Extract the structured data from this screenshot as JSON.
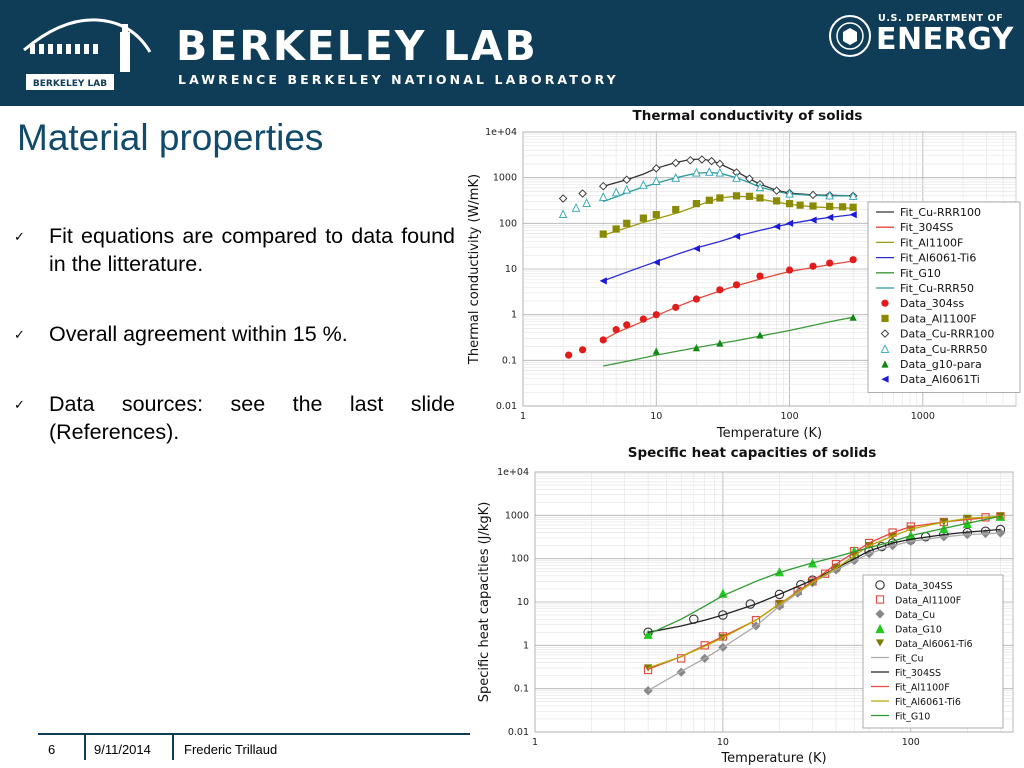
{
  "header": {
    "logo_left_text": "BERKELEY LAB",
    "wordmark": "BERKELEY LAB",
    "subtitle": "LAWRENCE BERKELEY NATIONAL LABORATORY",
    "doe_line1": "U.S. DEPARTMENT OF",
    "doe_line2": "ENERGY",
    "colors": {
      "header_bg": "#0f3d57",
      "title": "#124a6b"
    }
  },
  "slide": {
    "title": "Material properties",
    "bullets": [
      "Fit equations are compared to data found in the litterature.",
      "Overall agreement within 15 %.",
      "Data sources: see the last slide (References)."
    ],
    "check_glyph": "✓"
  },
  "footer": {
    "page": "6",
    "date": "9/11/2014",
    "author": "Frederic Trillaud"
  },
  "chart_data": [
    {
      "type": "line",
      "title": "Thermal conductivity of solids",
      "xlabel": "Temperature (K)",
      "ylabel": "Thermal conductivity (W/mK)",
      "xscale": "log",
      "yscale": "log",
      "xlim": [
        1,
        5000
      ],
      "ylim": [
        0.01,
        10000
      ],
      "xticks": [
        1,
        10,
        100,
        1000
      ],
      "xtick_labels": [
        "1",
        "10",
        "100",
        "1000"
      ],
      "yticks": [
        0.01,
        0.1,
        1,
        10,
        100,
        1000,
        10000
      ],
      "ytick_labels": [
        "0.01",
        "0.1",
        "1",
        "10",
        "100",
        "1000",
        "1e+04"
      ],
      "grid": true,
      "legend_position": "right",
      "series": [
        {
          "name": "Fit_Cu-RRR100",
          "kind": "line",
          "color": "#333333",
          "x": [
            4,
            6,
            8,
            10,
            14,
            18,
            22,
            26,
            30,
            40,
            50,
            60,
            80,
            100,
            150,
            200,
            300
          ],
          "y": [
            650,
            900,
            1200,
            1600,
            2150,
            2500,
            2550,
            2350,
            2000,
            1350,
            950,
            720,
            530,
            460,
            420,
            410,
            400
          ]
        },
        {
          "name": "Fit_304SS",
          "kind": "line",
          "color": "#e8463a",
          "x": [
            4,
            5,
            6,
            8,
            10,
            14,
            20,
            30,
            40,
            60,
            80,
            100,
            150,
            200,
            300
          ],
          "y": [
            0.28,
            0.4,
            0.5,
            0.72,
            0.95,
            1.45,
            2.2,
            3.3,
            4.3,
            6.0,
            7.5,
            8.8,
            10.8,
            12.5,
            15
          ]
        },
        {
          "name": "Fit_Al1100F",
          "kind": "line",
          "color": "#9a9a10",
          "x": [
            4,
            6,
            8,
            10,
            15,
            20,
            30,
            40,
            50,
            60,
            80,
            100,
            150,
            200,
            300
          ],
          "y": [
            55,
            80,
            105,
            125,
            175,
            240,
            360,
            390,
            380,
            340,
            290,
            260,
            230,
            220,
            215
          ]
        },
        {
          "name": "Fit_Al6061-Ti6",
          "kind": "line",
          "color": "#2b2bd6",
          "x": [
            4,
            6,
            8,
            10,
            15,
            20,
            30,
            40,
            60,
            80,
            100,
            150,
            200,
            300
          ],
          "y": [
            5.5,
            8.5,
            11.5,
            14.5,
            22,
            29,
            40,
            52,
            70,
            85,
            98,
            120,
            135,
            155
          ]
        },
        {
          "name": "Fit_G10",
          "kind": "line",
          "color": "#3a9a3a",
          "x": [
            4,
            6,
            10,
            20,
            40,
            60,
            100,
            200,
            300
          ],
          "y": [
            0.075,
            0.095,
            0.13,
            0.19,
            0.27,
            0.34,
            0.45,
            0.7,
            0.88
          ]
        },
        {
          "name": "Fit_Cu-RRR50",
          "kind": "line",
          "color": "#2a9a9a",
          "x": [
            4,
            5,
            6,
            8,
            10,
            14,
            20,
            25,
            30,
            40,
            50,
            60,
            80,
            100,
            150,
            200,
            300
          ],
          "y": [
            300,
            380,
            470,
            620,
            760,
            1000,
            1250,
            1300,
            1250,
            1000,
            780,
            620,
            500,
            440,
            410,
            400,
            400
          ]
        },
        {
          "name": "Data_304ss",
          "kind": "circle",
          "color": "#e21b1b",
          "x": [
            2.2,
            2.8,
            4,
            5,
            6,
            8,
            10,
            14,
            20,
            30,
            40,
            60,
            100,
            150,
            200,
            300
          ],
          "y": [
            0.13,
            0.17,
            0.28,
            0.47,
            0.6,
            0.8,
            1.0,
            1.45,
            2.2,
            3.5,
            4.5,
            7.0,
            9.5,
            11.5,
            13.5,
            16
          ]
        },
        {
          "name": "Data_Al1100F",
          "kind": "square",
          "color": "#8a8a00",
          "x": [
            4,
            5,
            6,
            8,
            10,
            14,
            20,
            25,
            30,
            40,
            50,
            60,
            80,
            100,
            120,
            150,
            200,
            250,
            300
          ],
          "y": [
            58,
            75,
            100,
            130,
            155,
            200,
            270,
            320,
            360,
            400,
            390,
            360,
            310,
            270,
            250,
            240,
            235,
            230,
            225
          ]
        },
        {
          "name": "Data_Cu-RRR100",
          "kind": "diamond",
          "color": "#333333",
          "x": [
            2,
            2.8,
            4,
            6,
            10,
            14,
            18,
            22,
            26,
            30,
            40,
            50,
            60,
            80,
            100,
            150,
            200,
            300
          ],
          "y": [
            350,
            450,
            650,
            900,
            1600,
            2100,
            2400,
            2500,
            2300,
            2000,
            1300,
            950,
            720,
            520,
            460,
            420,
            410,
            400
          ]
        },
        {
          "name": "Data_Cu-RRR50",
          "kind": "triangle-open",
          "color": "#2aa6b3",
          "x": [
            2,
            2.5,
            3,
            4,
            5,
            6,
            8,
            10,
            14,
            20,
            25,
            30,
            40,
            60,
            100,
            200,
            300
          ],
          "y": [
            160,
            220,
            280,
            380,
            480,
            550,
            700,
            850,
            1000,
            1300,
            1350,
            1300,
            1000,
            620,
            450,
            410,
            400
          ]
        },
        {
          "name": "Data_g10-para",
          "kind": "triangle",
          "color": "#118811",
          "x": [
            10,
            20,
            30,
            60,
            300
          ],
          "y": [
            0.16,
            0.19,
            0.24,
            0.36,
            0.88
          ]
        },
        {
          "name": "Data_Al6061Ti",
          "kind": "triangle-left",
          "color": "#1a1ad8",
          "x": [
            4,
            10,
            20,
            40,
            80,
            100,
            150,
            200,
            300
          ],
          "y": [
            5.5,
            14,
            28,
            52,
            85,
            100,
            118,
            135,
            155
          ]
        }
      ]
    },
    {
      "type": "line",
      "title": "Specific heat capacities of solids",
      "xlabel": "Temperature (K)",
      "ylabel": "Specific heat capacities (J/kgK)",
      "xscale": "log",
      "yscale": "log",
      "xlim": [
        1,
        350
      ],
      "ylim": [
        0.01,
        10000
      ],
      "xticks": [
        1,
        10,
        100
      ],
      "xtick_labels": [
        "1",
        "10",
        "100"
      ],
      "yticks": [
        0.01,
        0.1,
        1,
        10,
        100,
        1000,
        10000
      ],
      "ytick_labels": [
        "0.01",
        "0.1",
        "1",
        "10",
        "100",
        "1000",
        "1e+04"
      ],
      "grid": true,
      "legend_position": "bottom-right",
      "series": [
        {
          "name": "Data_304SS",
          "kind": "circle-open",
          "color": "#333333",
          "x": [
            4,
            7,
            10,
            14,
            20,
            26,
            30,
            40,
            50,
            60,
            70,
            80,
            100,
            120,
            150,
            200,
            250,
            300
          ],
          "y": [
            2,
            4,
            5,
            9,
            15,
            25,
            32,
            60,
            110,
            150,
            190,
            230,
            270,
            320,
            360,
            400,
            430,
            470
          ]
        },
        {
          "name": "Data_Al1100F",
          "kind": "square-open",
          "color": "#e8463a",
          "x": [
            4,
            6,
            8,
            10,
            15,
            20,
            25,
            30,
            35,
            40,
            50,
            60,
            80,
            100,
            150,
            200,
            250,
            300
          ],
          "y": [
            0.27,
            0.5,
            1.0,
            1.6,
            3.8,
            9,
            18,
            30,
            45,
            75,
            150,
            230,
            400,
            550,
            700,
            800,
            900,
            950
          ]
        },
        {
          "name": "Data_Cu",
          "kind": "diamond-filled",
          "color": "#888888",
          "x": [
            4,
            6,
            8,
            10,
            15,
            20,
            25,
            30,
            40,
            50,
            60,
            80,
            100,
            150,
            200,
            250,
            300
          ],
          "y": [
            0.09,
            0.24,
            0.5,
            0.9,
            2.8,
            8,
            16,
            28,
            55,
            90,
            130,
            200,
            250,
            320,
            360,
            380,
            390
          ]
        },
        {
          "name": "Data_G10",
          "kind": "triangle-green",
          "color": "#1ecb1e",
          "x": [
            4,
            10,
            20,
            30,
            50,
            100,
            150,
            200,
            300
          ],
          "y": [
            1.8,
            16,
            50,
            80,
            150,
            350,
            500,
            650,
            950
          ]
        },
        {
          "name": "Data_Al6061-Ti6",
          "kind": "triangle-down",
          "color": "#7a7a00",
          "x": [
            4,
            10,
            20,
            30,
            40,
            50,
            60,
            80,
            100,
            150,
            200,
            300
          ],
          "y": [
            0.3,
            1.5,
            9,
            28,
            60,
            120,
            200,
            330,
            480,
            700,
            850,
            950
          ]
        },
        {
          "name": "Fit_Cu",
          "kind": "line",
          "color": "#aaaaaa",
          "x": [
            4,
            6,
            8,
            10,
            15,
            20,
            30,
            40,
            60,
            80,
            100,
            150,
            200,
            300
          ],
          "y": [
            0.09,
            0.25,
            0.5,
            0.9,
            2.8,
            8,
            28,
            55,
            130,
            200,
            250,
            320,
            360,
            390
          ]
        },
        {
          "name": "Fit_304SS",
          "kind": "line",
          "color": "#222222",
          "x": [
            4,
            6,
            8,
            10,
            15,
            20,
            30,
            40,
            60,
            80,
            100,
            150,
            200,
            300
          ],
          "y": [
            2,
            2.8,
            3.8,
            5,
            9,
            15,
            32,
            60,
            150,
            230,
            280,
            360,
            410,
            470
          ]
        },
        {
          "name": "Fit_Al1100F",
          "kind": "line",
          "color": "#e8463a",
          "x": [
            4,
            6,
            8,
            10,
            15,
            20,
            30,
            40,
            60,
            80,
            100,
            150,
            200,
            300
          ],
          "y": [
            0.28,
            0.55,
            1.0,
            1.6,
            3.8,
            9,
            30,
            75,
            230,
            400,
            550,
            700,
            800,
            950
          ]
        },
        {
          "name": "Fit_Al6061-Ti6",
          "kind": "line",
          "color": "#b5a700",
          "x": [
            4,
            6,
            8,
            10,
            15,
            20,
            30,
            40,
            60,
            80,
            100,
            150,
            200,
            300
          ],
          "y": [
            0.3,
            0.55,
            0.95,
            1.5,
            3.8,
            9,
            28,
            60,
            200,
            330,
            480,
            700,
            850,
            950
          ]
        },
        {
          "name": "Fit_G10",
          "kind": "line",
          "color": "#2e9a2e",
          "x": [
            4,
            6,
            8,
            10,
            15,
            20,
            30,
            40,
            60,
            80,
            100,
            150,
            200,
            300
          ],
          "y": [
            1.8,
            4,
            8,
            14,
            30,
            48,
            80,
            110,
            180,
            250,
            340,
            500,
            650,
            950
          ]
        }
      ]
    }
  ]
}
